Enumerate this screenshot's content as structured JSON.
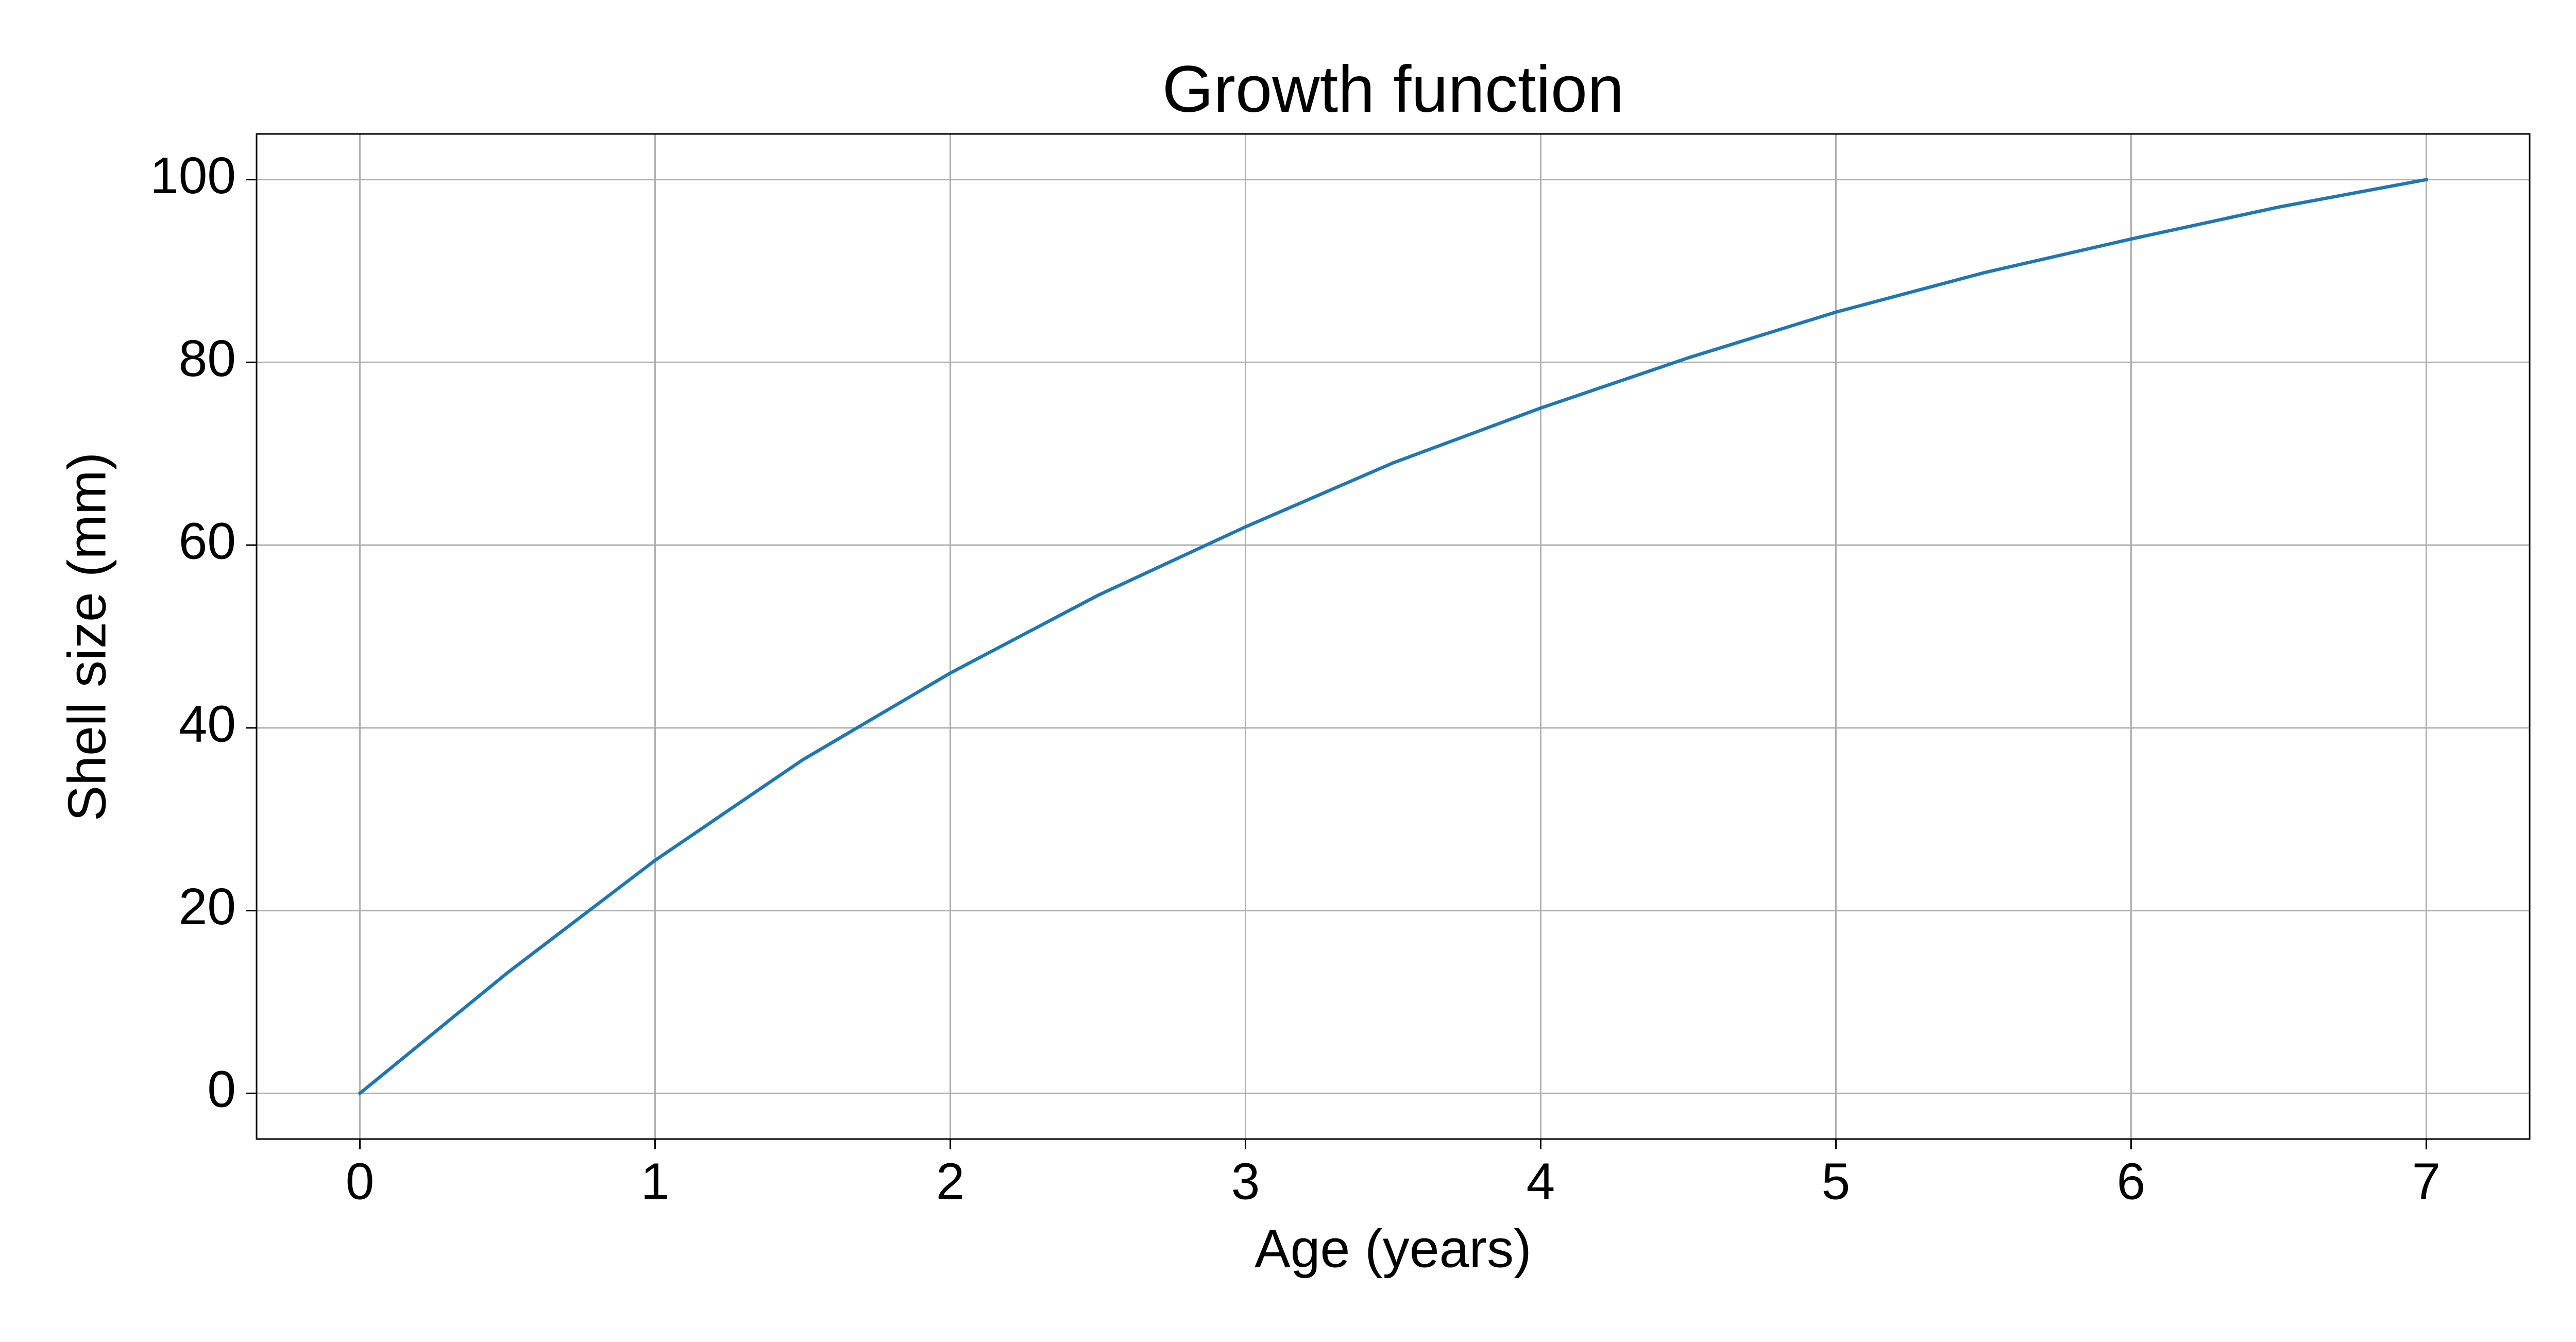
{
  "chart_data": {
    "type": "line",
    "title": "Growth function",
    "x_label": "Age (years)",
    "y_label": "Shell size (mm)",
    "x": [
      0,
      0.5,
      1,
      1.5,
      2,
      2.5,
      3,
      3.5,
      4,
      4.5,
      5,
      5.5,
      6,
      6.5,
      7
    ],
    "series": [
      {
        "name": "Growth function",
        "color": "#1f77b4",
        "values": [
          0,
          13.2,
          25.5,
          36.5,
          46,
          54.5,
          62,
          69,
          75,
          80.5,
          85.5,
          89.8,
          93.5,
          97,
          100
        ]
      }
    ],
    "xlim": [
      -0.35,
      7.35
    ],
    "ylim": [
      -5,
      105
    ],
    "xticks": [
      0,
      1,
      2,
      3,
      4,
      5,
      6,
      7
    ],
    "yticks": [
      0,
      20,
      40,
      60,
      80,
      100
    ],
    "grid": true
  }
}
